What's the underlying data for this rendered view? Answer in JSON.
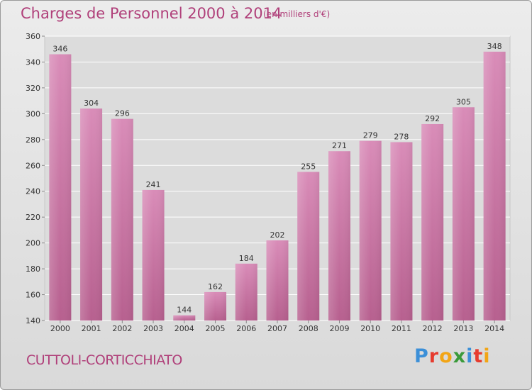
{
  "header": {
    "title": "Charges de Personnel 2000 à 2014",
    "subtitle": "(en milliers d'€)"
  },
  "footer": {
    "commune": "CUTTOLI-CORTICCHIATO",
    "logo_text": "Proxiti",
    "logo_colors": [
      "#3b8fd8",
      "#e63b2e",
      "#f2a516",
      "#3a9a3a",
      "#3b8fd8",
      "#e63b2e",
      "#f2a516"
    ]
  },
  "chart_data": {
    "type": "bar",
    "title": "Charges de Personnel 2000 à 2014",
    "subtitle": "(en milliers d'€)",
    "categories": [
      "2000",
      "2001",
      "2002",
      "2003",
      "2004",
      "2005",
      "2006",
      "2007",
      "2008",
      "2009",
      "2010",
      "2011",
      "2012",
      "2013",
      "2014"
    ],
    "values": [
      346,
      304,
      296,
      241,
      144,
      162,
      184,
      202,
      255,
      271,
      279,
      278,
      292,
      305,
      348
    ],
    "ylim": [
      140,
      360
    ],
    "yticks": [
      140,
      160,
      180,
      200,
      220,
      240,
      260,
      280,
      300,
      320,
      340,
      360
    ],
    "grid": true,
    "bar_color": "#d98cb8",
    "bar_color_dark": "#b7608f",
    "xlabel": "",
    "ylabel": ""
  }
}
